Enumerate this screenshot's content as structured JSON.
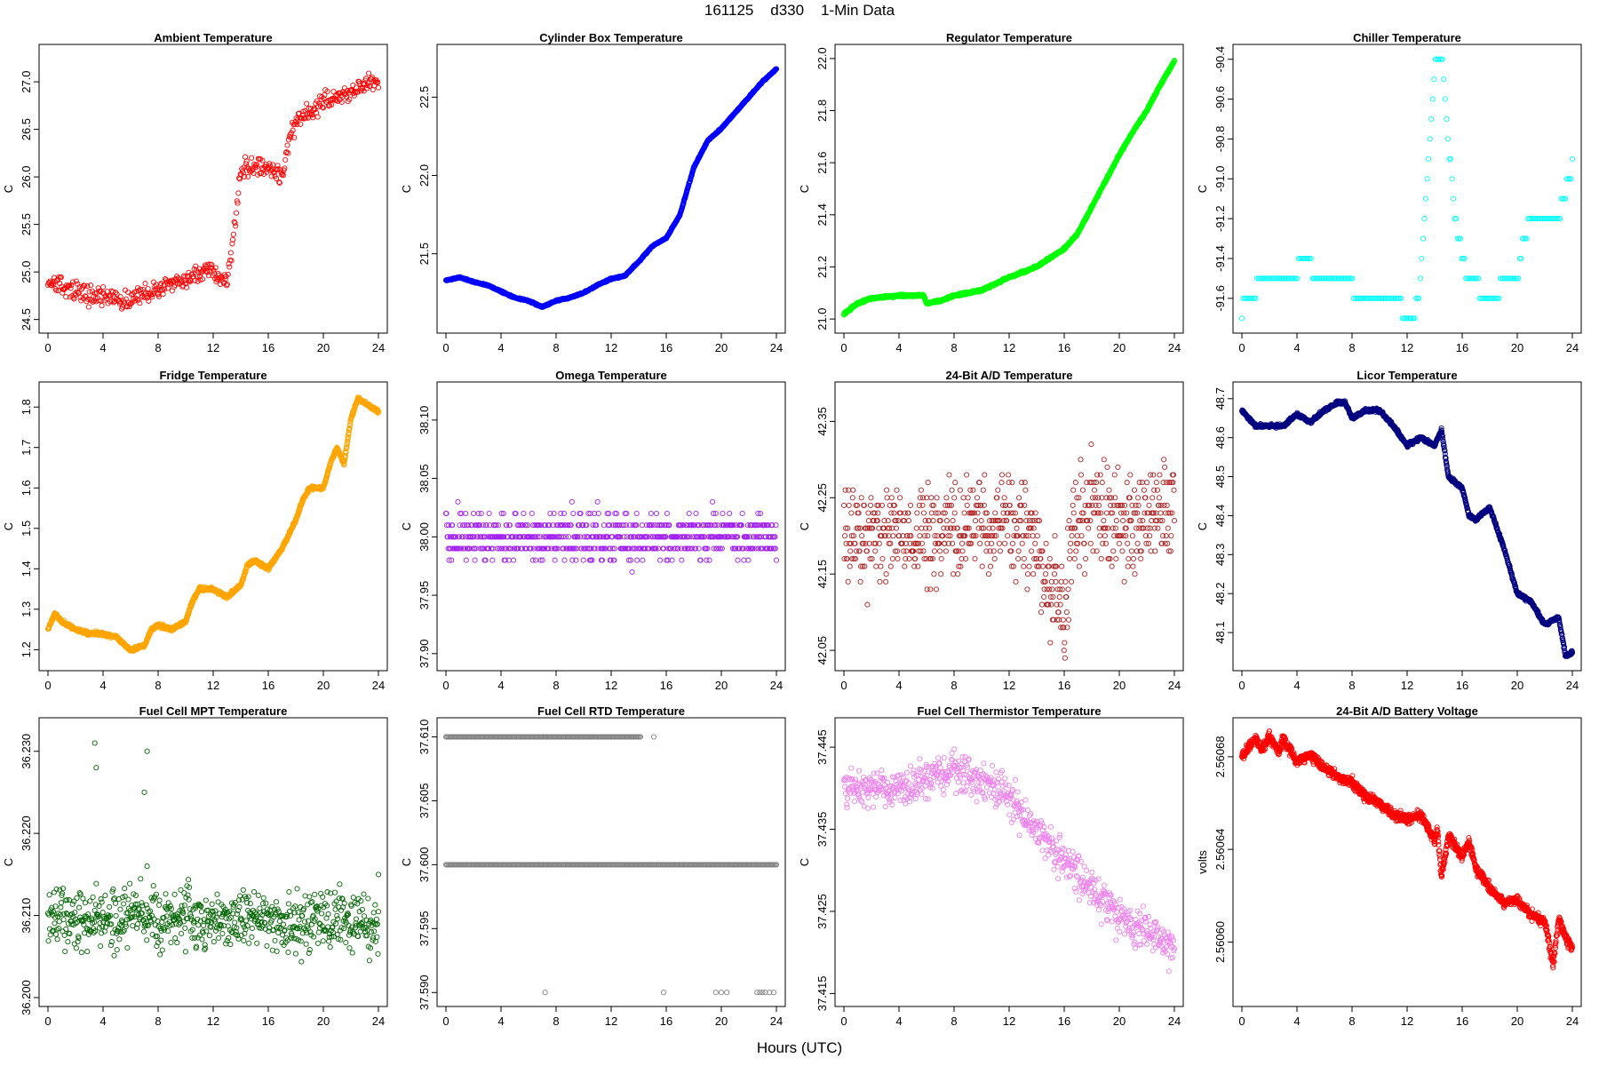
{
  "page": {
    "title": "161125    d330    1-Min Data",
    "x_axis_label": "Hours (UTC)"
  },
  "chart_data": [
    {
      "type": "scatter",
      "title": "Ambient Temperature",
      "ylabel": "C",
      "color": "#FF0000",
      "xlim": [
        0,
        24
      ],
      "xticks": [
        0,
        4,
        8,
        12,
        16,
        20,
        24
      ],
      "ylim": [
        24.45,
        27.3
      ],
      "yticks": [
        24.5,
        25.0,
        25.5,
        26.0,
        26.5,
        27.0
      ],
      "ytick_labels": [
        "24.5",
        "25.0",
        "25.5",
        "26.0",
        "26.5",
        "27.0"
      ],
      "shape": [
        [
          0,
          24.9
        ],
        [
          1,
          24.85
        ],
        [
          2,
          24.8
        ],
        [
          3,
          24.75
        ],
        [
          4,
          24.75
        ],
        [
          5,
          24.72
        ],
        [
          6,
          24.7
        ],
        [
          7,
          24.78
        ],
        [
          8,
          24.82
        ],
        [
          9,
          24.85
        ],
        [
          10,
          24.92
        ],
        [
          11,
          24.98
        ],
        [
          12,
          25.0
        ],
        [
          13,
          24.9
        ],
        [
          13.5,
          25.4
        ],
        [
          14,
          26.05
        ],
        [
          15,
          26.15
        ],
        [
          16,
          26.1
        ],
        [
          17,
          26.0
        ],
        [
          17.5,
          26.4
        ],
        [
          18,
          26.55
        ],
        [
          19,
          26.65
        ],
        [
          20,
          26.8
        ],
        [
          21,
          26.85
        ],
        [
          22,
          26.9
        ],
        [
          23,
          26.95
        ],
        [
          24,
          27.0
        ]
      ],
      "noise": 0.07,
      "points": 480,
      "quantum": 0
    },
    {
      "type": "scatter",
      "title": "Cylinder Box Temperature",
      "ylabel": "C",
      "color": "#0000FF",
      "xlim": [
        0,
        24
      ],
      "xticks": [
        0,
        4,
        8,
        12,
        16,
        20,
        24
      ],
      "ylim": [
        21.05,
        22.78
      ],
      "yticks": [
        21.5,
        22.0,
        22.5
      ],
      "ytick_labels": [
        "21.5",
        "22.0",
        "22.5"
      ],
      "shape": [
        [
          0,
          21.33
        ],
        [
          1,
          21.35
        ],
        [
          2,
          21.32
        ],
        [
          3,
          21.3
        ],
        [
          4,
          21.26
        ],
        [
          5,
          21.22
        ],
        [
          6,
          21.2
        ],
        [
          7,
          21.16
        ],
        [
          8,
          21.2
        ],
        [
          9,
          21.22
        ],
        [
          10,
          21.25
        ],
        [
          11,
          21.3
        ],
        [
          12,
          21.34
        ],
        [
          13,
          21.36
        ],
        [
          14,
          21.45
        ],
        [
          15,
          21.55
        ],
        [
          16,
          21.6
        ],
        [
          17,
          21.75
        ],
        [
          18,
          22.05
        ],
        [
          19,
          22.22
        ],
        [
          20,
          22.3
        ],
        [
          21,
          22.4
        ],
        [
          22,
          22.5
        ],
        [
          23,
          22.6
        ],
        [
          24,
          22.68
        ]
      ],
      "noise": 0.003,
      "points": 1440,
      "quantum": 0
    },
    {
      "type": "scatter",
      "title": "Regulator Temperature",
      "ylabel": "C",
      "color": "#00FF00",
      "xlim": [
        0,
        24
      ],
      "xticks": [
        0,
        4,
        8,
        12,
        16,
        20,
        24
      ],
      "ylim": [
        20.98,
        22.02
      ],
      "yticks": [
        21.0,
        21.2,
        21.4,
        21.6,
        21.8,
        22.0
      ],
      "ytick_labels": [
        "21.0",
        "21.2",
        "21.4",
        "21.6",
        "21.8",
        "22.0"
      ],
      "shape": [
        [
          0,
          21.02
        ],
        [
          1,
          21.06
        ],
        [
          2,
          21.08
        ],
        [
          4,
          21.09
        ],
        [
          5.8,
          21.09
        ],
        [
          6,
          21.06
        ],
        [
          7,
          21.07
        ],
        [
          8,
          21.09
        ],
        [
          10,
          21.11
        ],
        [
          12,
          21.16
        ],
        [
          14,
          21.2
        ],
        [
          16,
          21.27
        ],
        [
          17,
          21.33
        ],
        [
          18,
          21.43
        ],
        [
          19,
          21.53
        ],
        [
          20,
          21.63
        ],
        [
          21,
          21.72
        ],
        [
          22,
          21.8
        ],
        [
          23,
          21.9
        ],
        [
          24,
          21.99
        ]
      ],
      "noise": 0.003,
      "points": 1440,
      "quantum": 0
    },
    {
      "type": "scatter",
      "title": "Chiller Temperature",
      "ylabel": "C",
      "color": "#00FFFF",
      "xlim": [
        0,
        24
      ],
      "xticks": [
        0,
        4,
        8,
        12,
        16,
        20,
        24
      ],
      "ylim": [
        -91.73,
        -90.37
      ],
      "yticks": [
        -91.6,
        -91.4,
        -91.2,
        -91.0,
        -90.8,
        -90.6,
        -90.4
      ],
      "ytick_labels": [
        "-91.6",
        "-91.4",
        "-91.2",
        "-91.0",
        "-90.8",
        "-90.6",
        "-90.4"
      ],
      "shape": [
        [
          0,
          -91.7
        ],
        [
          0.1,
          -91.6
        ],
        [
          1,
          -91.6
        ],
        [
          1.2,
          -91.5
        ],
        [
          4,
          -91.5
        ],
        [
          4.1,
          -91.4
        ],
        [
          5,
          -91.4
        ],
        [
          5.2,
          -91.5
        ],
        [
          8,
          -91.5
        ],
        [
          8.2,
          -91.6
        ],
        [
          11.5,
          -91.6
        ],
        [
          11.6,
          -91.7
        ],
        [
          12.5,
          -91.7
        ],
        [
          13,
          -91.5
        ],
        [
          13.5,
          -91.0
        ],
        [
          14,
          -90.4
        ],
        [
          14.6,
          -90.4
        ],
        [
          15,
          -90.8
        ],
        [
          15.5,
          -91.2
        ],
        [
          16,
          -91.4
        ],
        [
          16.5,
          -91.5
        ],
        [
          17,
          -91.5
        ],
        [
          17.5,
          -91.6
        ],
        [
          18.5,
          -91.6
        ],
        [
          19,
          -91.5
        ],
        [
          20,
          -91.5
        ],
        [
          20.5,
          -91.3
        ],
        [
          21,
          -91.2
        ],
        [
          23,
          -91.2
        ],
        [
          23.3,
          -91.1
        ],
        [
          23.8,
          -91.0
        ],
        [
          24,
          -90.9
        ]
      ],
      "noise": 0,
      "points": 240,
      "quantum": 0.1
    },
    {
      "type": "scatter",
      "title": "Fridge Temperature",
      "ylabel": "C",
      "color": "#FFA500",
      "xlim": [
        0,
        24
      ],
      "xticks": [
        0,
        4,
        8,
        12,
        16,
        20,
        24
      ],
      "ylim": [
        1.17,
        1.84
      ],
      "yticks": [
        1.2,
        1.3,
        1.4,
        1.5,
        1.6,
        1.7,
        1.8
      ],
      "ytick_labels": [
        "1.2",
        "1.3",
        "1.4",
        "1.5",
        "1.6",
        "1.7",
        "1.8"
      ],
      "shape": [
        [
          0,
          1.25
        ],
        [
          0.5,
          1.29
        ],
        [
          1,
          1.27
        ],
        [
          2,
          1.25
        ],
        [
          3,
          1.24
        ],
        [
          4,
          1.24
        ],
        [
          5,
          1.23
        ],
        [
          6,
          1.2
        ],
        [
          7,
          1.21
        ],
        [
          7.5,
          1.25
        ],
        [
          8,
          1.26
        ],
        [
          9,
          1.25
        ],
        [
          10,
          1.27
        ],
        [
          10.5,
          1.32
        ],
        [
          11,
          1.35
        ],
        [
          12,
          1.35
        ],
        [
          13,
          1.33
        ],
        [
          14,
          1.36
        ],
        [
          14.5,
          1.41
        ],
        [
          15,
          1.42
        ],
        [
          16,
          1.4
        ],
        [
          17,
          1.45
        ],
        [
          18,
          1.52
        ],
        [
          18.5,
          1.57
        ],
        [
          19,
          1.6
        ],
        [
          20,
          1.6
        ],
        [
          20.5,
          1.66
        ],
        [
          21,
          1.7
        ],
        [
          21.5,
          1.66
        ],
        [
          22,
          1.77
        ],
        [
          22.5,
          1.82
        ],
        [
          23,
          1.81
        ],
        [
          24,
          1.79
        ]
      ],
      "noise": 0.003,
      "points": 1440,
      "quantum": 0
    },
    {
      "type": "scatter",
      "title": "Omega Temperature",
      "ylabel": "C",
      "color": "#A020F0",
      "xlim": [
        0,
        24
      ],
      "xticks": [
        0,
        4,
        8,
        12,
        16,
        20,
        24
      ],
      "ylim": [
        37.893,
        38.125
      ],
      "yticks": [
        37.9,
        37.95,
        38.0,
        38.05,
        38.1
      ],
      "ytick_labels": [
        "37.90",
        "37.95",
        "38.00",
        "38.05",
        "38.10"
      ],
      "shape": [
        [
          0,
          38.0
        ],
        [
          24,
          38.0
        ]
      ],
      "noise": 0.014,
      "points": 720,
      "quantum": 0.01
    },
    {
      "type": "scatter",
      "title": "24-Bit A/D Temperature",
      "ylabel": "C",
      "color": "#B22222",
      "xlim": [
        0,
        24
      ],
      "xticks": [
        0,
        4,
        8,
        12,
        16,
        20,
        24
      ],
      "ylim": [
        42.035,
        42.39
      ],
      "yticks": [
        42.05,
        42.15,
        42.25,
        42.35
      ],
      "ytick_labels": [
        "42.05",
        "42.15",
        "42.25",
        "42.35"
      ],
      "shape": [
        [
          0,
          42.2
        ],
        [
          4,
          42.2
        ],
        [
          8,
          42.21
        ],
        [
          12,
          42.22
        ],
        [
          14,
          42.2
        ],
        [
          15,
          42.12
        ],
        [
          16,
          42.1
        ],
        [
          16.5,
          42.2
        ],
        [
          18,
          42.24
        ],
        [
          20,
          42.22
        ],
        [
          24,
          42.23
        ]
      ],
      "noise": 0.045,
      "points": 720,
      "quantum": 0.01
    },
    {
      "type": "scatter",
      "title": "Licor Temperature",
      "ylabel": "C",
      "color": "#000080",
      "xlim": [
        0,
        24
      ],
      "xticks": [
        0,
        4,
        8,
        12,
        16,
        20,
        24
      ],
      "ylim": [
        48.025,
        48.72
      ],
      "yticks": [
        48.1,
        48.2,
        48.3,
        48.4,
        48.5,
        48.6,
        48.7
      ],
      "ytick_labels": [
        "48.1",
        "48.2",
        "48.3",
        "48.4",
        "48.5",
        "48.6",
        "48.7"
      ],
      "shape": [
        [
          0,
          48.67
        ],
        [
          1,
          48.63
        ],
        [
          3,
          48.63
        ],
        [
          4,
          48.66
        ],
        [
          5,
          48.64
        ],
        [
          6,
          48.67
        ],
        [
          7,
          48.69
        ],
        [
          7.5,
          48.69
        ],
        [
          8,
          48.65
        ],
        [
          9,
          48.67
        ],
        [
          10,
          48.67
        ],
        [
          11,
          48.63
        ],
        [
          12,
          48.58
        ],
        [
          13,
          48.6
        ],
        [
          14,
          48.58
        ],
        [
          14.5,
          48.62
        ],
        [
          15,
          48.5
        ],
        [
          16,
          48.47
        ],
        [
          16.5,
          48.4
        ],
        [
          17,
          48.39
        ],
        [
          18,
          48.42
        ],
        [
          19,
          48.32
        ],
        [
          20,
          48.2
        ],
        [
          21,
          48.18
        ],
        [
          22,
          48.12
        ],
        [
          23,
          48.14
        ],
        [
          23.5,
          48.04
        ],
        [
          24,
          48.05
        ]
      ],
      "noise": 0.003,
      "points": 1440,
      "quantum": 0
    },
    {
      "type": "scatter",
      "title": "Fuel Cell MPT Temperature",
      "ylabel": "C",
      "color": "#006400",
      "xlim": [
        0,
        24
      ],
      "xticks": [
        0,
        4,
        8,
        12,
        16,
        20,
        24
      ],
      "ylim": [
        36.2,
        36.233
      ],
      "yticks": [
        36.2,
        36.21,
        36.22,
        36.23
      ],
      "ytick_labels": [
        "36.200",
        "36.210",
        "36.220",
        "36.230"
      ],
      "shape": [
        [
          0,
          36.21
        ],
        [
          24,
          36.209
        ]
      ],
      "noise": 0.0026,
      "points": 700,
      "quantum": 0
    },
    {
      "type": "scatter",
      "title": "Fuel Cell RTD Temperature",
      "ylabel": "C",
      "color": "#808080",
      "xlim": [
        0,
        24
      ],
      "xticks": [
        0,
        4,
        8,
        12,
        16,
        20,
        24
      ],
      "ylim": [
        37.5896,
        37.6108
      ],
      "yticks": [
        37.59,
        37.595,
        37.6,
        37.605,
        37.61
      ],
      "ytick_labels": [
        "37.590",
        "37.595",
        "37.600",
        "37.605",
        "37.610"
      ],
      "shape": [
        [
          0,
          37.6
        ],
        [
          24,
          37.6
        ]
      ],
      "noise": 0,
      "points": 0,
      "quantum": 0
    },
    {
      "type": "scatter",
      "title": "Fuel Cell Thermistor Temperature",
      "ylabel": "C",
      "color": "#EE82EE",
      "xlim": [
        0,
        24
      ],
      "xticks": [
        0,
        4,
        8,
        12,
        16,
        20,
        24
      ],
      "ylim": [
        37.4145,
        37.4475
      ],
      "yticks": [
        37.415,
        37.425,
        37.435,
        37.445
      ],
      "ytick_labels": [
        "37.415",
        "37.425",
        "37.435",
        "37.445"
      ],
      "shape": [
        [
          0,
          37.44
        ],
        [
          4,
          37.44
        ],
        [
          6,
          37.441
        ],
        [
          8,
          37.442
        ],
        [
          10,
          37.441
        ],
        [
          12,
          37.439
        ],
        [
          14,
          37.435
        ],
        [
          16,
          37.431
        ],
        [
          18,
          37.428
        ],
        [
          20,
          37.424
        ],
        [
          22,
          37.423
        ],
        [
          24,
          37.42
        ]
      ],
      "noise": 0.0017,
      "points": 720,
      "quantum": 0
    },
    {
      "type": "scatter",
      "title": "24-Bit A/D Battery Voltage",
      "ylabel": "volts",
      "color": "#FF0000",
      "xlim": [
        0,
        24
      ],
      "xticks": [
        0,
        4,
        8,
        12,
        16,
        20,
        24
      ],
      "ylim": [
        2.560576,
        2.560693
      ],
      "yticks": [
        2.5606,
        2.56064,
        2.56068
      ],
      "ytick_labels": [
        "2.56060",
        "2.56064",
        "2.56068"
      ],
      "shape": [
        [
          0,
          2.56068
        ],
        [
          1,
          2.560688
        ],
        [
          1.5,
          2.560683
        ],
        [
          2,
          2.560689
        ],
        [
          2.7,
          2.560682
        ],
        [
          3,
          2.560688
        ],
        [
          4,
          2.560678
        ],
        [
          5,
          2.560681
        ],
        [
          6,
          2.560675
        ],
        [
          7,
          2.560671
        ],
        [
          8,
          2.560669
        ],
        [
          9,
          2.560663
        ],
        [
          10,
          2.56066
        ],
        [
          11,
          2.560655
        ],
        [
          12,
          2.560653
        ],
        [
          13,
          2.560655
        ],
        [
          14,
          2.560643
        ],
        [
          14.2,
          2.560649
        ],
        [
          14.5,
          2.560628
        ],
        [
          15,
          2.560646
        ],
        [
          16,
          2.560637
        ],
        [
          16.5,
          2.560643
        ],
        [
          17,
          2.560632
        ],
        [
          18,
          2.560623
        ],
        [
          19,
          2.560617
        ],
        [
          20,
          2.560618
        ],
        [
          21,
          2.560612
        ],
        [
          22,
          2.560609
        ],
        [
          22.6,
          2.56059
        ],
        [
          23,
          2.56061
        ],
        [
          23.7,
          2.5606
        ],
        [
          24,
          2.560598
        ]
      ],
      "noise": 1.5e-06,
      "points": 1440,
      "quantum": 0
    }
  ]
}
